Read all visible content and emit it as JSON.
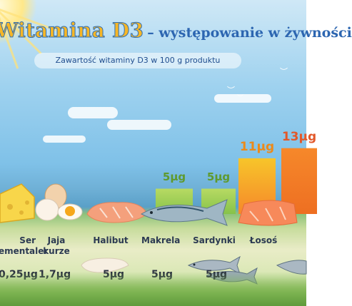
{
  "title_main": "Witamina D3",
  "title_rest": "– występowanie w żywności",
  "subtitle": "Zawartość witaminy D3 w 100 g produktu",
  "colors": {
    "title_yellow": "#f6b626",
    "title_blue": "#2d66b1",
    "bar_green_light": "#b7da63",
    "bar_green": "#86c24a",
    "bar_yellow": "#f7c52a",
    "bar_orange": "#f6882a",
    "value_green": "#5f9a2e",
    "value_orange": "#ec8a1a",
    "value_orange_dark": "#e2582a"
  },
  "chart_data": {
    "type": "bar",
    "title": "Zawartość witaminy D3 w 100 g produktu",
    "bars": [
      {
        "label": "5µg",
        "value": 5
      },
      {
        "label": "5µg",
        "value": 5
      },
      {
        "label": "11µg",
        "value": 11
      },
      {
        "label": "13µg",
        "value": 13
      }
    ],
    "foods": [
      {
        "name": "Ser\nementaler",
        "amount": "0,25µg",
        "icon": "cheese-icon"
      },
      {
        "name": "Jaja\nkurze",
        "amount": "1,7µg",
        "icon": "egg-icon"
      },
      {
        "name": "Halibut",
        "amount": "5µg",
        "icon": "halibut-icon"
      },
      {
        "name": "Makrela",
        "amount": "5µg",
        "icon": "mackerel-icon"
      },
      {
        "name": "Sardynki",
        "amount": "5µg",
        "icon": "sardine-icon"
      },
      {
        "name": "Łosoś",
        "amount": "",
        "icon": "salmon-icon"
      }
    ]
  }
}
